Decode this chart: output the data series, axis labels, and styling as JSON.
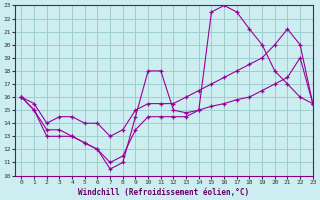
{
  "xlabel": "Windchill (Refroidissement éolien,°C)",
  "bg_color": "#cceef0",
  "grid_color": "#9ecece",
  "line_color": "#990099",
  "xlim": [
    -0.5,
    23
  ],
  "ylim": [
    10,
    23
  ],
  "xticks": [
    0,
    1,
    2,
    3,
    4,
    5,
    6,
    7,
    8,
    9,
    10,
    11,
    12,
    13,
    14,
    15,
    16,
    17,
    18,
    19,
    20,
    21,
    22,
    23
  ],
  "yticks": [
    10,
    11,
    12,
    13,
    14,
    15,
    16,
    17,
    18,
    19,
    20,
    21,
    22,
    23
  ],
  "line1_x": [
    0,
    1,
    2,
    3,
    4,
    5,
    6,
    7,
    8,
    9,
    10,
    11,
    12,
    13,
    14,
    15,
    16,
    17,
    18,
    19,
    20,
    21,
    22,
    23
  ],
  "line1_y": [
    16,
    15,
    13,
    13,
    13,
    12.5,
    12,
    10.5,
    11,
    14.5,
    18,
    18,
    15,
    14.8,
    15,
    22.5,
    23,
    22.5,
    21.2,
    20,
    18,
    17,
    16,
    15.5
  ],
  "line2_x": [
    0,
    1,
    2,
    3,
    4,
    5,
    6,
    7,
    8,
    9,
    10,
    11,
    12,
    13,
    14,
    15,
    16,
    17,
    18,
    19,
    20,
    21,
    22,
    23
  ],
  "line2_y": [
    16,
    15.5,
    14,
    14.5,
    14.5,
    14,
    14,
    13,
    13.5,
    15,
    15.5,
    15.5,
    15.5,
    16,
    16.5,
    17,
    17.5,
    18,
    18.5,
    19,
    20,
    21.2,
    20,
    15.5
  ],
  "line3_x": [
    0,
    1,
    2,
    3,
    4,
    5,
    6,
    7,
    8,
    9,
    10,
    11,
    12,
    13,
    14,
    15,
    16,
    17,
    18,
    19,
    20,
    21,
    22,
    23
  ],
  "line3_y": [
    16,
    15,
    13.5,
    13.5,
    13,
    12.5,
    12,
    11,
    11.5,
    13.5,
    14.5,
    14.5,
    14.5,
    14.5,
    15,
    15.3,
    15.5,
    15.8,
    16,
    16.5,
    17,
    17.5,
    19,
    15.5
  ]
}
